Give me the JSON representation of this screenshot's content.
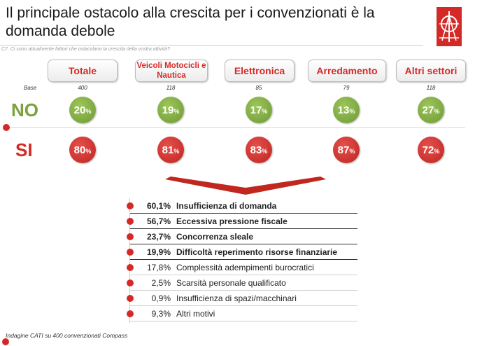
{
  "title": "Il principale ostacolo alla crescita per i convenzionati è la domanda debole",
  "question": "C7. Ci sono attualmente fattori che ostacolano la crescita della vostra attività?",
  "base_label": "Base",
  "no_label": "NO",
  "si_label": "SI",
  "pct_sign": "%",
  "categories": [
    {
      "name": "Totale",
      "base": "400",
      "no": "20",
      "si": "80"
    },
    {
      "name": "Veicoli Motocicli e Nautica",
      "base": "118",
      "no": "19",
      "si": "81"
    },
    {
      "name": "Elettronica",
      "base": "85",
      "no": "17",
      "si": "83"
    },
    {
      "name": "Arredamento",
      "base": "79",
      "no": "13",
      "si": "87"
    },
    {
      "name": "Altri settori",
      "base": "118",
      "no": "27",
      "si": "72"
    }
  ],
  "reasons": [
    {
      "value": "60,1%",
      "label": "Insufficienza di domanda"
    },
    {
      "value": "56,7%",
      "label": "Eccessiva pressione fiscale"
    },
    {
      "value": "23,7%",
      "label": "Concorrenza sleale"
    },
    {
      "value": "19,9%",
      "label": "Difficoltà reperimento risorse finanziarie"
    },
    {
      "value": "17,8%",
      "label": "Complessità adempimenti burocratici"
    },
    {
      "value": "2,5%",
      "label": "Scarsità personale qualificato"
    },
    {
      "value": "0,9%",
      "label": "Insufficienza di spazi/macchinari"
    },
    {
      "value": "9,3%",
      "label": "Altri motivi"
    }
  ],
  "footnote": "Indagine CATI su 400 convenzionati Compass",
  "colors": {
    "red": "#d42a27",
    "green": "#7aa33c"
  }
}
